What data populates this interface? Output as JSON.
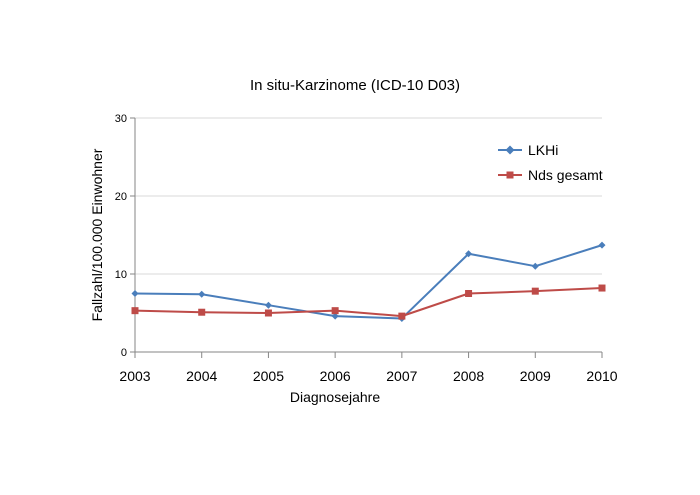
{
  "chart_data": {
    "type": "line",
    "title": "In situ-Karzinome (ICD-10 D03)",
    "xlabel": "Diagnosejahre",
    "ylabel": "Fallzahl/100.000 Einwohner",
    "categories": [
      "2003",
      "2004",
      "2005",
      "2006",
      "2007",
      "2008",
      "2009",
      "2010"
    ],
    "ylim": [
      0,
      30
    ],
    "yticks": [
      "0",
      "10",
      "20",
      "30"
    ],
    "grid": true,
    "legend_position": "top-right",
    "series": [
      {
        "name": "LKHi",
        "color": "#4a7ebb",
        "marker": "diamond",
        "values": [
          7.5,
          7.4,
          6.0,
          4.6,
          4.3,
          12.6,
          11.0,
          13.7
        ]
      },
      {
        "name": "Nds gesamt",
        "color": "#be4b48",
        "marker": "square",
        "values": [
          5.3,
          5.1,
          5.0,
          5.3,
          4.6,
          7.5,
          7.8,
          8.2
        ]
      }
    ]
  }
}
